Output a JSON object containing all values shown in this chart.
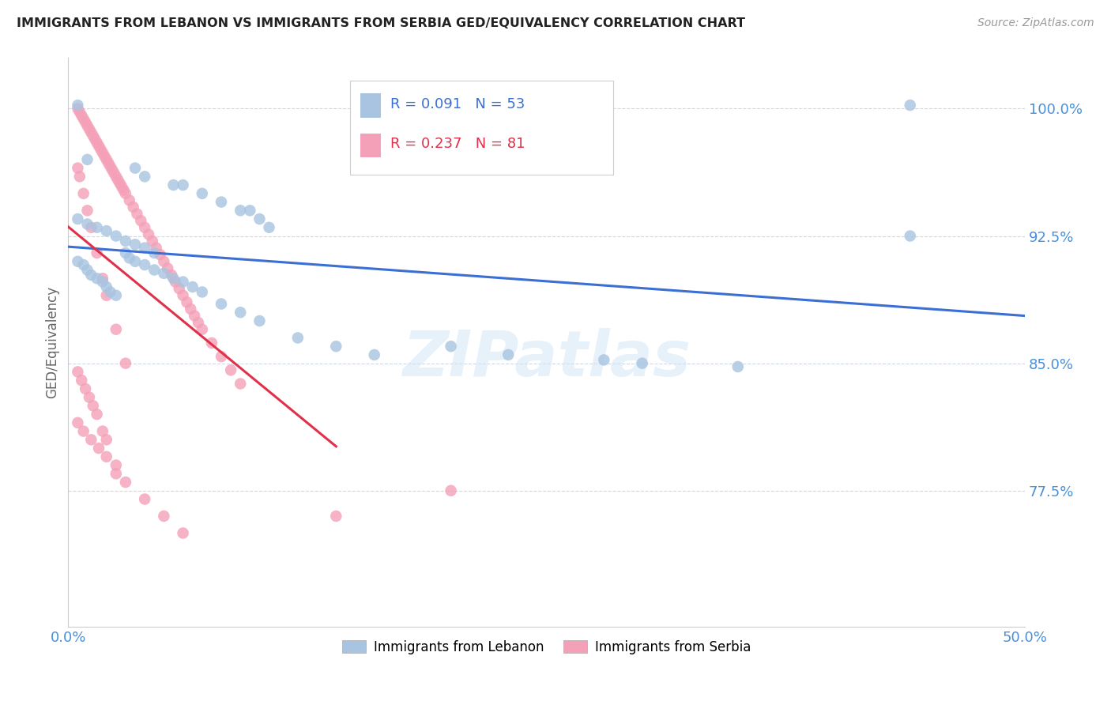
{
  "title": "IMMIGRANTS FROM LEBANON VS IMMIGRANTS FROM SERBIA GED/EQUIVALENCY CORRELATION CHART",
  "source": "Source: ZipAtlas.com",
  "ylabel": "GED/Equivalency",
  "xlim": [
    0.0,
    0.5
  ],
  "ylim": [
    0.695,
    1.03
  ],
  "yticks": [
    0.775,
    0.85,
    0.925,
    1.0
  ],
  "ytick_labels": [
    "77.5%",
    "85.0%",
    "92.5%",
    "100.0%"
  ],
  "xticks": [
    0.0,
    0.1,
    0.2,
    0.3,
    0.4,
    0.5
  ],
  "xtick_labels": [
    "0.0%",
    "",
    "",
    "",
    "",
    "50.0%"
  ],
  "legend_label_lebanon": "Immigrants from Lebanon",
  "legend_label_serbia": "Immigrants from Serbia",
  "R_lebanon": 0.091,
  "N_lebanon": 53,
  "R_serbia": 0.237,
  "N_serbia": 81,
  "color_lebanon": "#a8c4e0",
  "color_serbia": "#f4a0b8",
  "line_color_lebanon": "#3b6fd4",
  "line_color_serbia": "#e0304a",
  "watermark": "ZIPatlas",
  "background_color": "#ffffff",
  "grid_color": "#d0d8e8",
  "title_color": "#222222",
  "axis_label_color": "#666666",
  "tick_color": "#4a90d9",
  "lebanon_x": [
    0.005,
    0.44,
    0.01,
    0.035,
    0.04,
    0.055,
    0.06,
    0.07,
    0.08,
    0.09,
    0.095,
    0.1,
    0.105,
    0.005,
    0.01,
    0.015,
    0.02,
    0.025,
    0.03,
    0.035,
    0.04,
    0.045,
    0.005,
    0.008,
    0.01,
    0.012,
    0.015,
    0.018,
    0.02,
    0.022,
    0.025,
    0.03,
    0.032,
    0.035,
    0.04,
    0.045,
    0.05,
    0.055,
    0.06,
    0.065,
    0.07,
    0.08,
    0.09,
    0.1,
    0.12,
    0.14,
    0.16,
    0.2,
    0.23,
    0.28,
    0.3,
    0.35,
    0.44
  ],
  "lebanon_y": [
    1.002,
    1.002,
    0.97,
    0.965,
    0.96,
    0.955,
    0.955,
    0.95,
    0.945,
    0.94,
    0.94,
    0.935,
    0.93,
    0.935,
    0.932,
    0.93,
    0.928,
    0.925,
    0.922,
    0.92,
    0.918,
    0.915,
    0.91,
    0.908,
    0.905,
    0.902,
    0.9,
    0.898,
    0.895,
    0.892,
    0.89,
    0.915,
    0.912,
    0.91,
    0.908,
    0.905,
    0.903,
    0.9,
    0.898,
    0.895,
    0.892,
    0.885,
    0.88,
    0.875,
    0.865,
    0.86,
    0.855,
    0.86,
    0.855,
    0.852,
    0.85,
    0.848,
    0.925
  ],
  "serbia_x": [
    0.005,
    0.006,
    0.007,
    0.008,
    0.009,
    0.01,
    0.011,
    0.012,
    0.013,
    0.014,
    0.015,
    0.016,
    0.017,
    0.018,
    0.019,
    0.02,
    0.021,
    0.022,
    0.023,
    0.024,
    0.025,
    0.026,
    0.027,
    0.028,
    0.029,
    0.03,
    0.032,
    0.034,
    0.036,
    0.038,
    0.04,
    0.042,
    0.044,
    0.046,
    0.048,
    0.05,
    0.052,
    0.054,
    0.056,
    0.058,
    0.06,
    0.062,
    0.064,
    0.066,
    0.068,
    0.07,
    0.075,
    0.08,
    0.085,
    0.09,
    0.005,
    0.006,
    0.008,
    0.01,
    0.012,
    0.015,
    0.018,
    0.02,
    0.025,
    0.03,
    0.005,
    0.007,
    0.009,
    0.011,
    0.013,
    0.015,
    0.018,
    0.02,
    0.025,
    0.005,
    0.008,
    0.012,
    0.016,
    0.02,
    0.025,
    0.03,
    0.04,
    0.05,
    0.06,
    0.14,
    0.2
  ],
  "serbia_y": [
    1.0,
    0.998,
    0.996,
    0.994,
    0.992,
    0.99,
    0.988,
    0.986,
    0.984,
    0.982,
    0.98,
    0.978,
    0.976,
    0.974,
    0.972,
    0.97,
    0.968,
    0.966,
    0.964,
    0.962,
    0.96,
    0.958,
    0.956,
    0.954,
    0.952,
    0.95,
    0.946,
    0.942,
    0.938,
    0.934,
    0.93,
    0.926,
    0.922,
    0.918,
    0.914,
    0.91,
    0.906,
    0.902,
    0.898,
    0.894,
    0.89,
    0.886,
    0.882,
    0.878,
    0.874,
    0.87,
    0.862,
    0.854,
    0.846,
    0.838,
    0.965,
    0.96,
    0.95,
    0.94,
    0.93,
    0.915,
    0.9,
    0.89,
    0.87,
    0.85,
    0.845,
    0.84,
    0.835,
    0.83,
    0.825,
    0.82,
    0.81,
    0.805,
    0.79,
    0.815,
    0.81,
    0.805,
    0.8,
    0.795,
    0.785,
    0.78,
    0.77,
    0.76,
    0.75,
    0.76,
    0.775
  ]
}
